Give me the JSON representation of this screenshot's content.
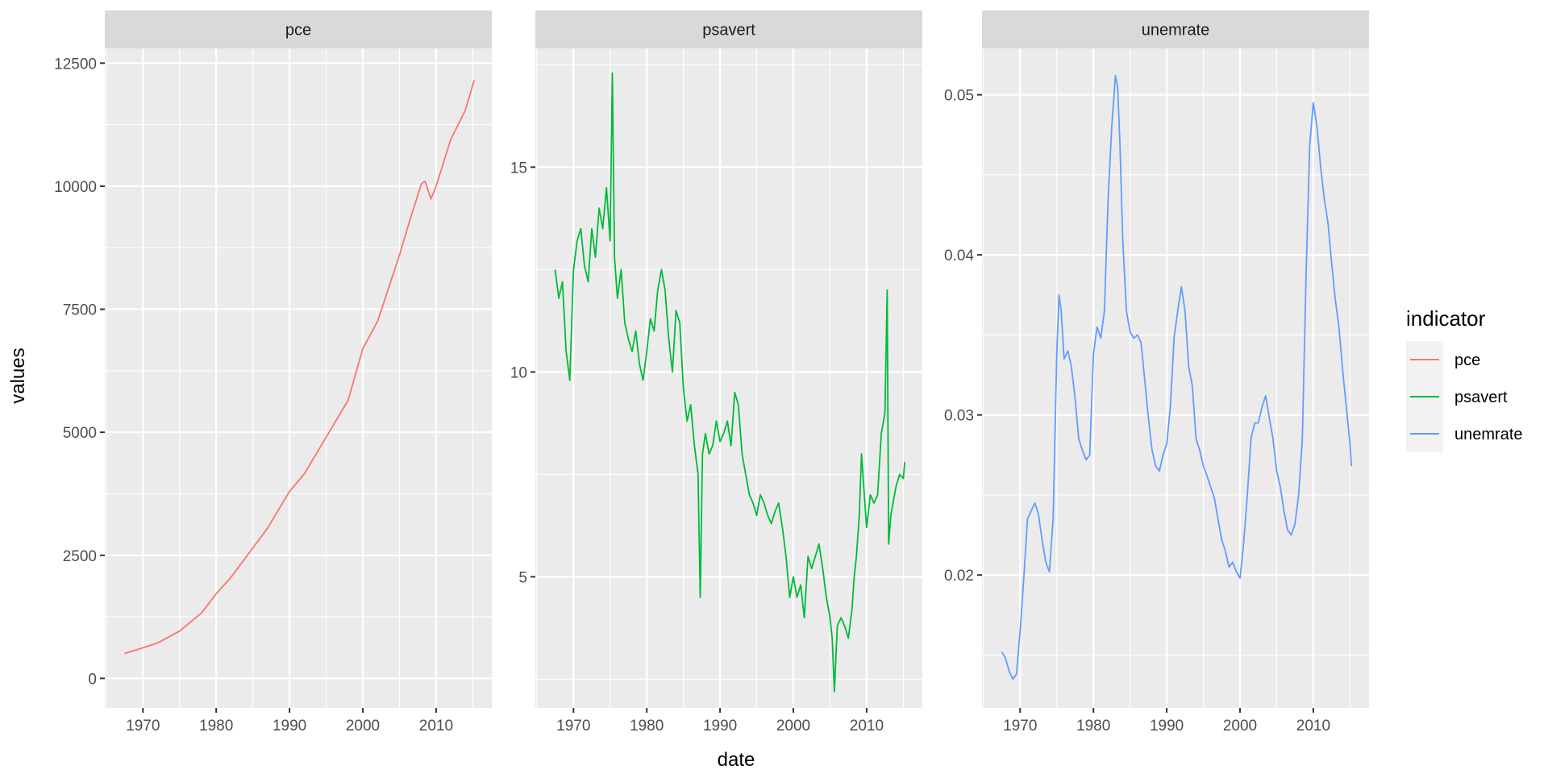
{
  "chart_data": {
    "type": "line",
    "layout": "faceted small multiples, independent y-scales",
    "xlabel": "date",
    "ylabel": "values",
    "legend": {
      "title": "indicator",
      "position": "right",
      "entries": [
        {
          "label": "pce",
          "color": "#F8766D"
        },
        {
          "label": "psavert",
          "color": "#00BA38"
        },
        {
          "label": "unemrate",
          "color": "#619CFF"
        }
      ]
    },
    "panels": [
      {
        "strip": "pce",
        "color": "#F8766D",
        "xlim": [
          1964.8,
          2017.6
        ],
        "ylim": [
          -600,
          12800
        ],
        "xticks": [
          1970,
          1980,
          1990,
          2000,
          2010
        ],
        "yticks": [
          0,
          2500,
          5000,
          7500,
          10000,
          12500
        ],
        "ytick_labels": [
          "0",
          "2500",
          "5000",
          "7500",
          "10000",
          "12500"
        ],
        "x": [
          1967.5,
          1970,
          1972,
          1975,
          1978,
          1980,
          1982,
          1985,
          1987,
          1990,
          1992,
          1995,
          1998,
          2000,
          2002,
          2003,
          2005,
          2006.5,
          2008,
          2008.5,
          2009.3,
          2010,
          2012,
          2014,
          2015.2
        ],
        "values": [
          505,
          620,
          720,
          960,
          1330,
          1720,
          2050,
          2650,
          3050,
          3800,
          4150,
          4900,
          5650,
          6700,
          7250,
          7700,
          8600,
          9350,
          10050,
          10100,
          9740,
          10000,
          10950,
          11550,
          12160
        ]
      },
      {
        "strip": "psavert",
        "color": "#00BA38",
        "xlim": [
          1964.8,
          2017.6
        ],
        "ylim": [
          1.8,
          17.9
        ],
        "xticks": [
          1970,
          1980,
          1990,
          2000,
          2010
        ],
        "yticks": [
          5,
          10,
          15
        ],
        "ytick_labels": [
          "5",
          "10",
          "15"
        ],
        "x": [
          1967.5,
          1968,
          1968.5,
          1969,
          1969.5,
          1970,
          1970.5,
          1971,
          1971.5,
          1972,
          1972.5,
          1973,
          1973.5,
          1974,
          1974.5,
          1975,
          1975.3,
          1975.6,
          1976,
          1976.5,
          1977,
          1977.5,
          1978,
          1978.5,
          1979,
          1979.5,
          1980,
          1980.5,
          1981,
          1981.5,
          1982,
          1982.5,
          1983,
          1983.5,
          1984,
          1984.5,
          1985,
          1985.5,
          1986,
          1986.5,
          1987,
          1987.3,
          1987.6,
          1988,
          1988.5,
          1989,
          1989.5,
          1990,
          1990.5,
          1991,
          1991.5,
          1992,
          1992.5,
          1993,
          1993.5,
          1994,
          1994.5,
          1995,
          1995.5,
          1996,
          1996.5,
          1997,
          1997.5,
          1998,
          1998.5,
          1999,
          1999.5,
          2000,
          2000.5,
          2001,
          2001.5,
          2002,
          2002.5,
          2003,
          2003.5,
          2004,
          2004.5,
          2005,
          2005.3,
          2005.6,
          2006,
          2006.5,
          2007,
          2007.5,
          2008,
          2008.3,
          2008.6,
          2009,
          2009.3,
          2009.6,
          2010,
          2010.5,
          2011,
          2011.5,
          2012,
          2012.5,
          2012.8,
          2013,
          2013.3,
          2013.6,
          2014,
          2014.5,
          2015,
          2015.2
        ],
        "values": [
          12.5,
          11.8,
          12.2,
          10.5,
          9.8,
          12.5,
          13.2,
          13.5,
          12.6,
          12.2,
          13.5,
          12.8,
          14.0,
          13.5,
          14.5,
          13.2,
          17.3,
          12.8,
          11.8,
          12.5,
          11.2,
          10.8,
          10.5,
          11.0,
          10.2,
          9.8,
          10.5,
          11.3,
          11.0,
          12.0,
          12.5,
          12.0,
          10.8,
          10.0,
          11.5,
          11.2,
          9.6,
          8.8,
          9.2,
          8.2,
          7.5,
          4.5,
          8.0,
          8.5,
          8.0,
          8.2,
          8.8,
          8.3,
          8.5,
          8.8,
          8.2,
          9.5,
          9.2,
          8.0,
          7.5,
          7.0,
          6.8,
          6.5,
          7.0,
          6.8,
          6.5,
          6.3,
          6.6,
          6.8,
          6.2,
          5.5,
          4.5,
          5.0,
          4.5,
          4.8,
          4.0,
          5.5,
          5.2,
          5.5,
          5.8,
          5.2,
          4.5,
          4.0,
          3.5,
          2.2,
          3.8,
          4.0,
          3.8,
          3.5,
          4.2,
          5.0,
          5.5,
          6.5,
          8.0,
          7.2,
          6.2,
          7.0,
          6.8,
          7.0,
          8.5,
          9.0,
          12.0,
          5.8,
          6.5,
          6.8,
          7.2,
          7.5,
          7.4,
          7.8
        ]
      },
      {
        "strip": "unemrate",
        "color": "#619CFF",
        "xlim": [
          1964.8,
          2017.6
        ],
        "ylim": [
          0.0117,
          0.0529
        ],
        "xticks": [
          1970,
          1980,
          1990,
          2000,
          2010
        ],
        "yticks": [
          0.02,
          0.03,
          0.04,
          0.05
        ],
        "ytick_labels": [
          "0.02",
          "0.03",
          "0.04",
          "0.05"
        ],
        "x": [
          1967.5,
          1968,
          1968.5,
          1969,
          1969.5,
          1970,
          1970.5,
          1971,
          1971.5,
          1972,
          1972.5,
          1973,
          1973.5,
          1974,
          1974.5,
          1975,
          1975.3,
          1975.6,
          1976,
          1976.5,
          1977,
          1977.5,
          1978,
          1978.5,
          1979,
          1979.5,
          1980,
          1980.5,
          1981,
          1981.5,
          1982,
          1982.5,
          1983,
          1983.3,
          1983.6,
          1984,
          1984.5,
          1985,
          1985.5,
          1986,
          1986.5,
          1987,
          1987.5,
          1988,
          1988.5,
          1989,
          1989.5,
          1990,
          1990.5,
          1991,
          1991.5,
          1992,
          1992.5,
          1993,
          1993.5,
          1994,
          1994.5,
          1995,
          1995.5,
          1996,
          1996.5,
          1997,
          1997.5,
          1998,
          1998.5,
          1999,
          1999.5,
          2000,
          2000.5,
          2001,
          2001.5,
          2002,
          2002.5,
          2003,
          2003.5,
          2004,
          2004.5,
          2005,
          2005.5,
          2006,
          2006.5,
          2007,
          2007.5,
          2008,
          2008.5,
          2009,
          2009.5,
          2010,
          2010.5,
          2011,
          2011.5,
          2012,
          2012.5,
          2013,
          2013.5,
          2014,
          2014.5,
          2015,
          2015.2
        ],
        "values": [
          0.0152,
          0.0148,
          0.014,
          0.0135,
          0.0138,
          0.0165,
          0.0198,
          0.0235,
          0.024,
          0.0245,
          0.0238,
          0.0222,
          0.0208,
          0.0202,
          0.0235,
          0.0338,
          0.0375,
          0.0365,
          0.0335,
          0.034,
          0.033,
          0.031,
          0.0285,
          0.0278,
          0.0272,
          0.0275,
          0.0338,
          0.0355,
          0.0348,
          0.0365,
          0.0435,
          0.048,
          0.0512,
          0.0505,
          0.0472,
          0.041,
          0.0365,
          0.0352,
          0.0348,
          0.035,
          0.0345,
          0.0322,
          0.0298,
          0.0278,
          0.0268,
          0.0265,
          0.0275,
          0.0282,
          0.0305,
          0.0348,
          0.0365,
          0.038,
          0.0365,
          0.033,
          0.0318,
          0.0285,
          0.0278,
          0.0268,
          0.0262,
          0.0255,
          0.0248,
          0.0235,
          0.0222,
          0.0215,
          0.0205,
          0.0208,
          0.0202,
          0.0198,
          0.022,
          0.025,
          0.0285,
          0.0295,
          0.0295,
          0.0305,
          0.0312,
          0.0298,
          0.0285,
          0.0265,
          0.0255,
          0.024,
          0.0228,
          0.0225,
          0.0232,
          0.025,
          0.0285,
          0.0385,
          0.0468,
          0.0495,
          0.048,
          0.0455,
          0.0435,
          0.042,
          0.0395,
          0.0372,
          0.0355,
          0.0328,
          0.0305,
          0.0282,
          0.0268
        ]
      }
    ]
  }
}
